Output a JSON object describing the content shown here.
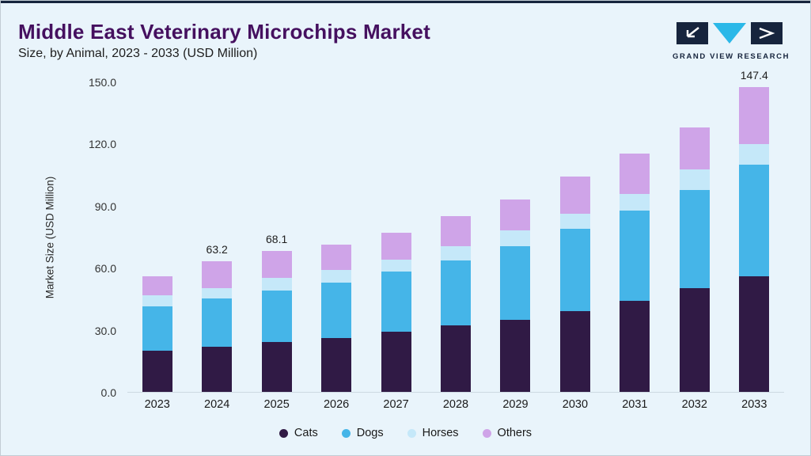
{
  "header": {
    "title": "Middle East Veterinary Microchips Market",
    "subtitle": "Size, by Animal, 2023 - 2033 (USD Million)",
    "logo_text": "GRAND VIEW RESEARCH"
  },
  "colors": {
    "background": "#e9f4fb",
    "title": "#45105f",
    "brand_navy": "#16243d",
    "brand_cyan": "#2bb8e8"
  },
  "chart_data": {
    "type": "bar",
    "stacked": true,
    "title": "Middle East Veterinary Microchips Market Size, by Animal, 2023 - 2033 (USD Million)",
    "xlabel": "",
    "ylabel": "Market Size (USD Million)",
    "ylim": [
      0,
      150
    ],
    "ytick_labels": [
      "0.0",
      "30.0",
      "60.0",
      "90.0",
      "120.0",
      "150.0"
    ],
    "grid": false,
    "legend_position": "bottom",
    "categories": [
      "2023",
      "2024",
      "2025",
      "2026",
      "2027",
      "2028",
      "2029",
      "2030",
      "2031",
      "2032",
      "2033"
    ],
    "series": [
      {
        "name": "Cats",
        "color": "#301a45",
        "values": [
          20.0,
          22.0,
          24.0,
          26.0,
          29.0,
          32.0,
          35.0,
          39.0,
          44.0,
          50.0,
          56.0
        ]
      },
      {
        "name": "Dogs",
        "color": "#45b5e8",
        "values": [
          21.5,
          23.0,
          25.0,
          27.0,
          29.0,
          31.5,
          35.5,
          40.0,
          43.5,
          47.5,
          54.0
        ]
      },
      {
        "name": "Horses",
        "color": "#c5e8f9",
        "values": [
          5.0,
          5.0,
          6.0,
          6.0,
          6.0,
          7.0,
          7.5,
          7.0,
          8.0,
          10.0,
          10.0
        ]
      },
      {
        "name": "Others",
        "color": "#cfa4e8",
        "values": [
          9.5,
          13.2,
          13.1,
          12.0,
          13.0,
          14.5,
          15.0,
          18.0,
          19.5,
          20.5,
          27.4
        ]
      }
    ],
    "totals": [
      56.0,
      63.2,
      68.1,
      71.0,
      77.0,
      85.0,
      93.0,
      104.0,
      115.0,
      128.0,
      147.4
    ],
    "bar_labels": {
      "2024": "63.2",
      "2025": "68.1",
      "2033": "147.4"
    }
  }
}
